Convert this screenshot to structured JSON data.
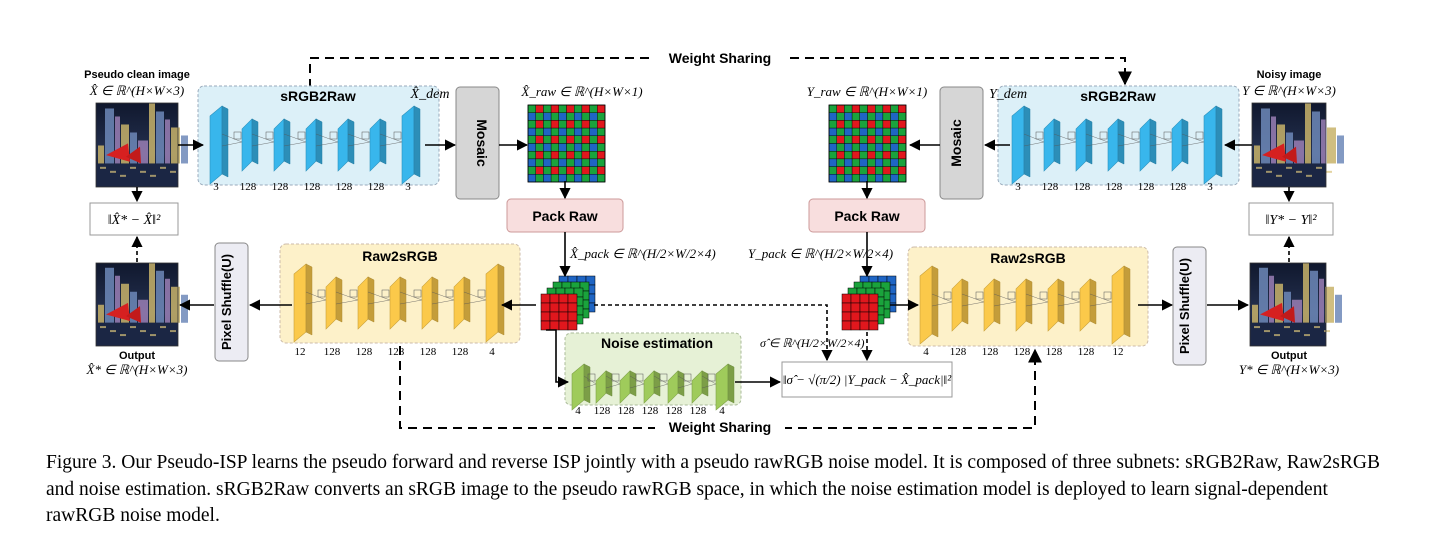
{
  "weight_sharing_top": "Weight Sharing",
  "weight_sharing_bottom": "Weight Sharing",
  "left_input": {
    "title": "Pseudo clean image",
    "math": "X̂ ∈ ℝ^(H×W×3)"
  },
  "right_input": {
    "title": "Noisy image",
    "math": "Y ∈ ℝ^(H×W×3)"
  },
  "left_output": {
    "title": "Output",
    "math": "X̂* ∈ ℝ^(H×W×3)"
  },
  "right_output": {
    "title": "Output",
    "math": "Y* ∈ ℝ^(H×W×3)"
  },
  "srgb2raw_left": {
    "title": "sRGB2Raw",
    "channels": [
      "3",
      "128",
      "128",
      "128",
      "128",
      "128",
      "3"
    ]
  },
  "srgb2raw_right": {
    "title": "sRGB2Raw",
    "channels": [
      "3",
      "128",
      "128",
      "128",
      "128",
      "128",
      "3"
    ]
  },
  "raw2srgb_left": {
    "title": "Raw2sRGB",
    "channels": [
      "12",
      "128",
      "128",
      "128",
      "128",
      "128",
      "4"
    ]
  },
  "raw2srgb_right": {
    "title": "Raw2sRGB",
    "channels": [
      "4",
      "128",
      "128",
      "128",
      "128",
      "128",
      "12"
    ]
  },
  "noise_est": {
    "title": "Noise estimation",
    "channels": [
      "4",
      "128",
      "128",
      "128",
      "128",
      "128",
      "4"
    ],
    "math": "σ̂ ∈ ℝ^(H/2×W/2×4)"
  },
  "mosaic_label": "Mosaic",
  "pack_raw_label": "Pack Raw",
  "pixel_shuffle_label": "Pixel Shuffle(U)",
  "math_labels": {
    "x_dem": "X̂_dem",
    "y_dem": "Y_dem",
    "x_raw": "X̂_raw ∈ ℝ^(H×W×1)",
    "y_raw": "Y_raw ∈ ℝ^(H×W×1)",
    "x_pack": "X̂_pack ∈ ℝ^(H/2×W/2×4)",
    "y_pack": "Y_pack ∈ ℝ^(H/2×W/2×4)",
    "loss_left": "‖X̂* − X̂‖²",
    "loss_right": "‖Y* − Y‖²",
    "loss_noise": "‖σ̂ − √(π/2) |Y_pack − X̂_pack|‖²"
  },
  "caption": "Figure 3. Our Pseudo-ISP learns the pseudo forward and reverse ISP jointly with a pseudo rawRGB noise model. It is composed of three subnets: sRGB2Raw, Raw2sRGB and noise estimation. sRGB2Raw converts an sRGB image to the pseudo rawRGB space, in which the noise estimation model is deployed to learn signal-dependent rawRGB noise model.",
  "colors": {
    "srgb2raw_bg": "#dcefF7",
    "srgb2raw_layer": "#38b6ec",
    "raw2srgb_bg": "#fdf1c9",
    "raw2srgb_layer": "#fbc94a",
    "noise_bg": "#e6f1d6",
    "noise_layer": "#9fcb5b",
    "mosaic_box": "#d6d6d6",
    "pack_raw_box": "#f8dede",
    "pixel_shuffle_box": "#ececf3",
    "bayer_red": "#e1171d",
    "bayer_green": "#1aa33c",
    "bayer_blue": "#1f65c4"
  }
}
